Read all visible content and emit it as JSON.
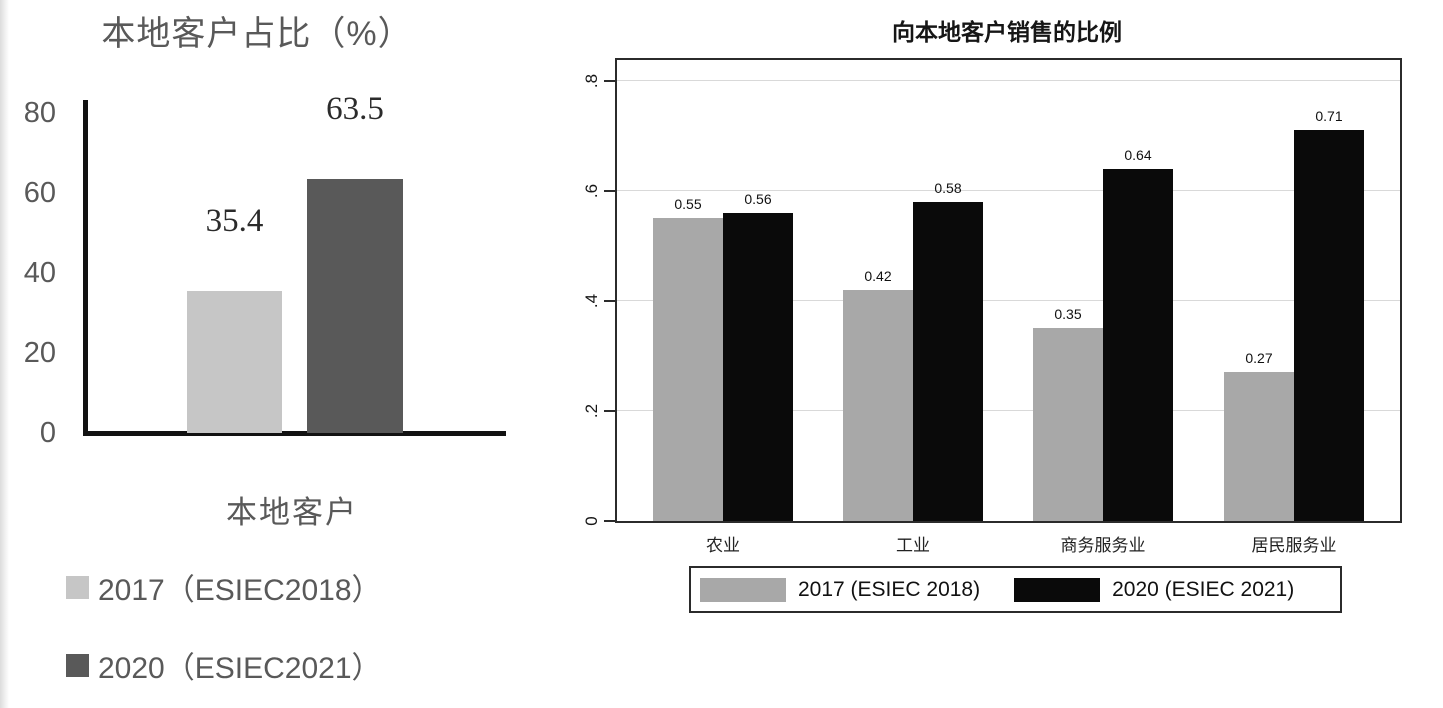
{
  "chart_data": [
    {
      "type": "bar",
      "title": "本地客户占比（%）",
      "xlabel": "本地客户",
      "categories": [
        "本地客户"
      ],
      "series": [
        {
          "name": "2017（ESIEC2018）",
          "color": "#c6c6c6",
          "values": [
            35.4
          ]
        },
        {
          "name": "2020（ESIEC2021）",
          "color": "#595959",
          "values": [
            63.5
          ]
        }
      ],
      "value_labels": [
        [
          "35.4"
        ],
        [
          "63.5"
        ]
      ],
      "yticks": [
        0,
        20,
        40,
        60,
        80
      ],
      "ylim": [
        0,
        80
      ],
      "grid": false,
      "legend_position": "below-vertical",
      "colors": {
        "text": "#595959",
        "axis": "#121212",
        "value_label": "#2b2b2b"
      }
    },
    {
      "type": "bar",
      "title": "向本地客户销售的比例",
      "xlabel": "",
      "categories": [
        "农业",
        "工业",
        "商务服务业",
        "居民服务业"
      ],
      "series": [
        {
          "name": "2017 (ESIEC 2018)",
          "color": "#a8a8a8",
          "values": [
            0.55,
            0.42,
            0.35,
            0.27
          ]
        },
        {
          "name": "2020 (ESIEC 2021)",
          "color": "#0a0a0a",
          "values": [
            0.56,
            0.58,
            0.64,
            0.71
          ]
        }
      ],
      "value_labels": [
        [
          "0.55",
          "0.42",
          "0.35",
          "0.27"
        ],
        [
          "0.56",
          "0.58",
          "0.64",
          "0.71"
        ]
      ],
      "yticks": [
        {
          "label": "0",
          "value": 0
        },
        {
          "label": ".2",
          "value": 0.2
        },
        {
          "label": ".4",
          "value": 0.4
        },
        {
          "label": ".6",
          "value": 0.6
        },
        {
          "label": ".8",
          "value": 0.8
        }
      ],
      "ylim": [
        0,
        0.85
      ],
      "grid": true,
      "legend_position": "bottom-box",
      "colors": {
        "text": "#161616",
        "axis": "#2b2b2b",
        "grid": "#d9d9d9",
        "value_label": "#111111"
      }
    }
  ]
}
